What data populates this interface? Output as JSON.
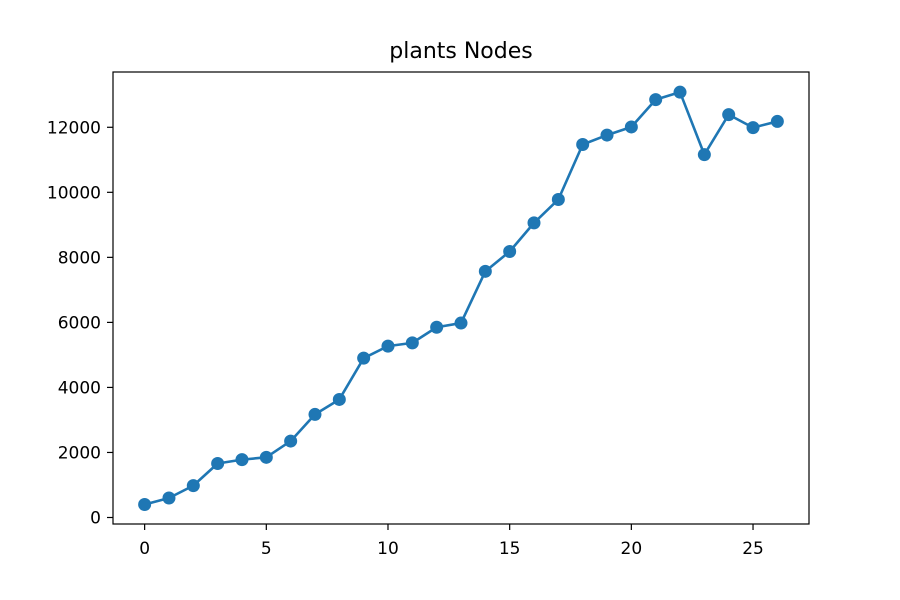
{
  "chart_data": {
    "type": "line",
    "title": "plants Nodes",
    "xlabel": "",
    "ylabel": "",
    "xlim": [
      -1.3,
      27.3
    ],
    "ylim": [
      -200,
      13700
    ],
    "xticks": [
      0,
      5,
      10,
      15,
      20,
      25
    ],
    "yticks": [
      0,
      2000,
      4000,
      6000,
      8000,
      10000,
      12000
    ],
    "grid": false,
    "legend": "none",
    "series": [
      {
        "color": "#1f77b4",
        "marker": "circle",
        "x": [
          0,
          1,
          2,
          3,
          4,
          5,
          6,
          7,
          8,
          9,
          10,
          11,
          12,
          13,
          14,
          15,
          16,
          17,
          18,
          19,
          20,
          21,
          22,
          23,
          24,
          25,
          26
        ],
        "y": [
          400,
          600,
          980,
          1660,
          1780,
          1850,
          2350,
          3170,
          3630,
          4900,
          5270,
          5370,
          5850,
          5980,
          7570,
          8180,
          9060,
          9780,
          11470,
          11760,
          12010,
          12850,
          13080,
          11160,
          12390,
          11990,
          12180
        ]
      }
    ]
  }
}
